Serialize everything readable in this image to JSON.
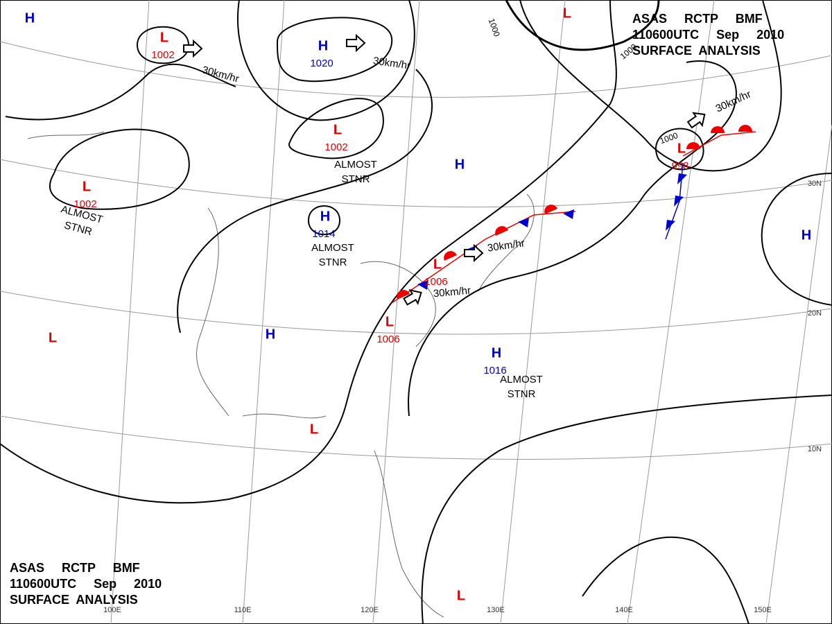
{
  "title_top": [
    "ASAS     RCTP     BMF",
    "110600UTC     Sep     2010",
    "SURFACE  ANALYSIS"
  ],
  "title_bottom": [
    "ASAS     RCTP     BMF",
    "110600UTC     Sep     2010",
    "SURFACE  ANALYSIS"
  ],
  "centers": [
    {
      "symbol": "H"
    },
    {
      "symbol": "L",
      "pressure": "1002"
    },
    {
      "symbol": "H",
      "pressure": "1020"
    },
    {
      "symbol": "L"
    },
    {
      "symbol": "L",
      "pressure": "1002"
    },
    {
      "symbol": "L",
      "pressure": "1002"
    },
    {
      "symbol": "H"
    },
    {
      "symbol": "H",
      "pressure": "1014"
    },
    {
      "symbol": "L",
      "pressure": "1006"
    },
    {
      "symbol": "L",
      "pressure": "1006"
    },
    {
      "symbol": "H"
    },
    {
      "symbol": "L"
    },
    {
      "symbol": "H",
      "pressure": "1016"
    },
    {
      "symbol": "L"
    },
    {
      "symbol": "L"
    },
    {
      "symbol": "H"
    },
    {
      "symbol": "L",
      "pressure": "998"
    }
  ],
  "stationary_notes": [
    [
      "ALMOST",
      "STNR"
    ],
    [
      "ALMOST",
      "STNR"
    ],
    [
      "ALMOST",
      "STNR"
    ],
    [
      "ALMOST",
      "STNR"
    ]
  ],
  "motion_labels": [
    "30km/hr",
    "30km/hr",
    "30km/hr",
    "30km/hr",
    "30km/hr"
  ],
  "isobar_labels": [
    "1000",
    "1000",
    "1000"
  ],
  "lat_labels": [
    "30N",
    "20N",
    "10N"
  ],
  "lon_labels": [
    "100E",
    "110E",
    "120E",
    "130E",
    "140E",
    "150E"
  ]
}
